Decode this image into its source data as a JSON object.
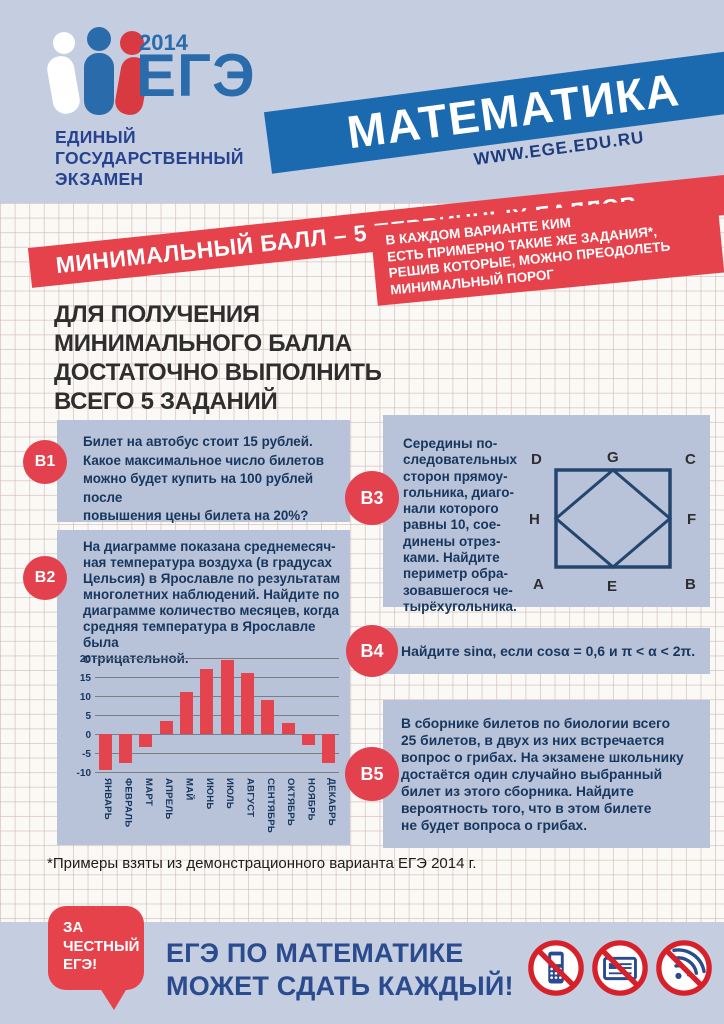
{
  "header": {
    "year": "2014",
    "logo": "ЕГЭ",
    "org_lines": [
      "ЕДИНЫЙ",
      "ГОСУДАРСТВЕННЫЙ",
      "ЭКЗАМЕН"
    ],
    "subject": "МАТЕМАТИКА",
    "website": "WWW.EGE.EDU.RU"
  },
  "banners": {
    "min_score": "МИНИМАЛЬНЫЙ БАЛЛ – 5 ПЕРВИЧНЫХ БАЛЛОВ",
    "kim_note_lines": [
      "В КАЖДОМ ВАРИАНТЕ КИМ",
      "ЕСТЬ ПРИМЕРНО ТАКИЕ ЖЕ ЗАДАНИЯ*,",
      "РЕШИВ КОТОРЫЕ, МОЖНО ПРЕОДОЛЕТЬ",
      "МИНИМАЛЬНЫЙ ПОРОГ"
    ]
  },
  "heading_lines": [
    "ДЛЯ ПОЛУЧЕНИЯ",
    "МИНИМАЛЬНОГО БАЛЛА",
    "ДОСТАТОЧНО ВЫПОЛНИТЬ",
    "ВСЕГО 5 ЗАДАНИЙ"
  ],
  "tasks": {
    "b1": {
      "badge": "B1",
      "lines": [
        "Билет на автобус стоит 15 рублей.",
        "Какое максимальное число билетов",
        "можно будет купить на 100 рублей после",
        "повышения цены билета на 20%?"
      ]
    },
    "b2": {
      "badge": "B2",
      "lines": [
        "На диаграмме показана среднемесяч-",
        "ная температура воздуха (в градусах",
        "Цельсия) в Ярославле по результатам",
        "многолетних наблюдений. Найдите по",
        "диаграмме количество месяцев, когда",
        "средняя температура в Ярославле была",
        "отрицательной."
      ]
    },
    "b3": {
      "badge": "B3",
      "lines": [
        "Середины по-",
        "следовательных",
        "сторон прямоу-",
        "гольника, диаго-",
        "нали которого",
        "равны 10, сое-",
        "динены отрез-",
        "ками. Найдите",
        "периметр обра-",
        "зовавшегося че-",
        "тырёхугольника."
      ],
      "diagram_labels": [
        "D",
        "G",
        "C",
        "H",
        "F",
        "A",
        "E",
        "B"
      ]
    },
    "b4": {
      "badge": "B4",
      "text": "Найдите sinα, если cosα = 0,6 и π < α < 2π."
    },
    "b5": {
      "badge": "B5",
      "lines": [
        "В сборнике билетов по биологии всего",
        "25 билетов, в двух из них встречается",
        "вопрос о грибах. На экзамене школьнику",
        "достаётся один случайно выбранный",
        "билет из этого сборника. Найдите",
        "вероятность того, что в этом билете",
        "не будет вопроса о грибах."
      ]
    }
  },
  "chart_data": {
    "type": "bar",
    "categories": [
      "ЯНВАРЬ",
      "ФЕВРАЛЬ",
      "МАРТ",
      "АПРЕЛЬ",
      "МАЙ",
      "ИЮНЬ",
      "ИЮЛЬ",
      "АВГУСТ",
      "СЕНТЯБРЬ",
      "ОКТЯБРЬ",
      "НОЯБРЬ",
      "ДЕКАБРЬ"
    ],
    "values": [
      -9.5,
      -7.5,
      -3.5,
      3.5,
      11,
      17,
      19.5,
      16,
      9,
      3,
      -3,
      -7.5
    ],
    "ylim": [
      -10,
      20
    ],
    "yticks": [
      20,
      15,
      10,
      5,
      0,
      -5,
      -10
    ],
    "grid": true,
    "bar_color": "#e4444e"
  },
  "footnote": "*Примеры взяты из демонстрационного варианта ЕГЭ 2014 г.",
  "footer": {
    "bubble_lines": [
      "ЗА",
      "ЧЕСТНЫЙ",
      "ЕГЭ!"
    ],
    "slogan_lines": [
      "ЕГЭ ПО МАТЕМАТИКЕ",
      "МОЖЕТ СДАТЬ КАЖДЫЙ!"
    ],
    "prohibition_icons": [
      "no-mobile-phone",
      "no-cheat-sheet",
      "no-wifi"
    ]
  },
  "colors": {
    "top_band_bg": "#c5cde0",
    "band_blue": "#1b6ab0",
    "accent_red": "#e5424c",
    "task_box_bg": "#b8c3d9",
    "task_text": "#17365d",
    "slogan_blue": "#2a4b8d",
    "logo_blue": "#2a6cab"
  }
}
